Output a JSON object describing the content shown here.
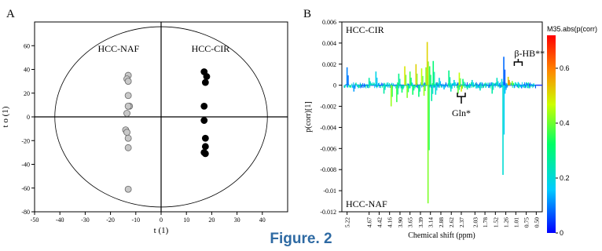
{
  "figure": {
    "caption": "Figure. 2"
  },
  "chart_data": [
    {
      "type": "scatter",
      "panel_label": "A",
      "title": "",
      "xlabel": "t (1)",
      "ylabel": "t o (1)",
      "xlim": [
        -50,
        50
      ],
      "ylim": [
        -80,
        80
      ],
      "xticks": [
        -50,
        -40,
        -30,
        -20,
        -10,
        0,
        10,
        20,
        30,
        40
      ],
      "yticks": [
        -80,
        -60,
        -40,
        -20,
        0,
        20,
        40,
        60
      ],
      "grid": false,
      "ellipse": {
        "center": [
          0,
          0
        ],
        "rx": 42,
        "ry": 76
      },
      "annotations": [
        {
          "text": "HCC-NAF",
          "x": -25,
          "y": 55
        },
        {
          "text": "HCC-CIR",
          "x": 12,
          "y": 55
        }
      ],
      "series": [
        {
          "name": "HCC-NAF",
          "color": "#c8c8c8",
          "points": [
            [
              -13,
              35
            ],
            [
              -13.5,
              32
            ],
            [
              -13,
              30
            ],
            [
              -13,
              18
            ],
            [
              -12.5,
              9
            ],
            [
              -13,
              9
            ],
            [
              -13.5,
              3
            ],
            [
              -14,
              -11
            ],
            [
              -13.5,
              -13
            ],
            [
              -13,
              -18
            ],
            [
              -13,
              -26
            ],
            [
              -13,
              -61
            ]
          ]
        },
        {
          "name": "HCC-CIR",
          "color": "#000000",
          "points": [
            [
              17,
              38
            ],
            [
              18,
              34
            ],
            [
              17.5,
              29
            ],
            [
              17,
              9
            ],
            [
              17,
              -3
            ],
            [
              17.5,
              -18
            ],
            [
              17.5,
              -25
            ],
            [
              17,
              -30
            ],
            [
              17.5,
              -31
            ]
          ]
        }
      ]
    },
    {
      "type": "line",
      "panel_label": "B",
      "title": "",
      "xlabel": "Chemical shift (ppm)",
      "ylabel": "p(corr)[1]",
      "x_reversed": true,
      "xlim": [
        5.35,
        0.35
      ],
      "ylim": [
        -0.012,
        0.006
      ],
      "xticks": [
        "5.22",
        "4.67",
        "4.42",
        "4.16",
        "3.90",
        "3.65",
        "3.39",
        "3.14",
        "2.88",
        "2.62",
        "2.37",
        "2.03",
        "1.78",
        "1.52",
        "1.26",
        "1.01",
        "0.75",
        "0.50"
      ],
      "yticks": [
        -0.012,
        -0.01,
        -0.008,
        -0.006,
        -0.004,
        -0.002,
        0,
        0.002,
        0.004,
        0.006
      ],
      "grid": false,
      "annotations": [
        {
          "text": "HCC-CIR",
          "position": "top-left"
        },
        {
          "text": "HCC-NAF",
          "position": "bottom-left"
        },
        {
          "text": "β-HB**",
          "x": 0.95,
          "y": 0.0025
        },
        {
          "text": "Gln*",
          "x": 2.2,
          "y": -0.0035
        }
      ],
      "colorbar": {
        "label": "M35.abs(p(corr)",
        "ticks": [
          0,
          0.2,
          0.4,
          0.6
        ],
        "colors": [
          "#0000ff",
          "#00ccff",
          "#00ff66",
          "#ccff00",
          "#ff8800",
          "#ff0000"
        ]
      },
      "series": [
        {
          "name": "",
          "note": "",
          "peaks": [
            {
              "x": 5.22,
              "y": 0.0017,
              "c": 0.1
            },
            {
              "x": 5.05,
              "y": -0.0006,
              "c": 0.12
            },
            {
              "x": 4.67,
              "y": 0.0007,
              "c": 0.25
            },
            {
              "x": 4.5,
              "y": 0.0013,
              "c": 0.18
            },
            {
              "x": 4.3,
              "y": -0.0008,
              "c": 0.25
            },
            {
              "x": 4.12,
              "y": -0.002,
              "c": 0.42
            },
            {
              "x": 3.98,
              "y": -0.0016,
              "c": 0.35
            },
            {
              "x": 3.93,
              "y": 0.0011,
              "c": 0.28
            },
            {
              "x": 3.85,
              "y": -0.0007,
              "c": 0.3
            },
            {
              "x": 3.78,
              "y": 0.0018,
              "c": 0.48
            },
            {
              "x": 3.72,
              "y": -0.0012,
              "c": 0.4
            },
            {
              "x": 3.65,
              "y": 0.0013,
              "c": 0.36
            },
            {
              "x": 3.58,
              "y": -0.0009,
              "c": 0.32
            },
            {
              "x": 3.5,
              "y": 0.002,
              "c": 0.5
            },
            {
              "x": 3.43,
              "y": -0.0011,
              "c": 0.3
            },
            {
              "x": 3.36,
              "y": 0.0016,
              "c": 0.45
            },
            {
              "x": 3.3,
              "y": -0.001,
              "c": 0.42
            },
            {
              "x": 3.25,
              "y": 0.0017,
              "c": 0.4
            },
            {
              "x": 3.22,
              "y": 0.0041,
              "c": 0.5
            },
            {
              "x": 3.2,
              "y": -0.0112,
              "c": 0.4
            },
            {
              "x": 3.16,
              "y": 0.0018,
              "c": 0.35
            },
            {
              "x": 3.11,
              "y": -0.0015,
              "c": 0.25
            },
            {
              "x": 3.07,
              "y": 0.0023,
              "c": 0.3
            },
            {
              "x": 3.01,
              "y": -0.0009,
              "c": 0.2
            },
            {
              "x": 2.92,
              "y": 0.0007,
              "c": 0.18
            },
            {
              "x": 2.8,
              "y": -0.0004,
              "c": 0.15
            },
            {
              "x": 2.68,
              "y": 0.0014,
              "c": 0.28
            },
            {
              "x": 2.63,
              "y": -0.0006,
              "c": 0.22
            },
            {
              "x": 2.55,
              "y": 0.0005,
              "c": 0.2
            },
            {
              "x": 2.45,
              "y": -0.0008,
              "c": 0.38
            },
            {
              "x": 2.42,
              "y": 0.0012,
              "c": 0.45
            },
            {
              "x": 2.37,
              "y": -0.0006,
              "c": 0.48
            },
            {
              "x": 2.33,
              "y": 0.0006,
              "c": 0.3
            },
            {
              "x": 2.22,
              "y": -0.0004,
              "c": 0.25
            },
            {
              "x": 2.1,
              "y": 0.0005,
              "c": 0.2
            },
            {
              "x": 2.0,
              "y": -0.0003,
              "c": 0.18
            },
            {
              "x": 1.9,
              "y": -0.0005,
              "c": 0.22
            },
            {
              "x": 1.6,
              "y": -0.0008,
              "c": 0.25
            },
            {
              "x": 1.48,
              "y": 0.0007,
              "c": 0.22
            },
            {
              "x": 1.36,
              "y": 0.0006,
              "c": 0.2
            },
            {
              "x": 1.33,
              "y": -0.0085,
              "c": 0.2
            },
            {
              "x": 1.31,
              "y": 0.0027,
              "c": 0.08
            },
            {
              "x": 1.28,
              "y": -0.0008,
              "c": 0.15
            },
            {
              "x": 1.2,
              "y": 0.0008,
              "c": 0.5
            },
            {
              "x": 1.18,
              "y": 0.0005,
              "c": 0.6
            },
            {
              "x": 1.1,
              "y": 0.0004,
              "c": 0.4
            },
            {
              "x": 0.95,
              "y": 0.0003,
              "c": 0.18
            },
            {
              "x": 0.88,
              "y": -0.0002,
              "c": 0.15
            },
            {
              "x": 0.75,
              "y": 0.0002,
              "c": 0.12
            }
          ]
        }
      ]
    }
  ]
}
